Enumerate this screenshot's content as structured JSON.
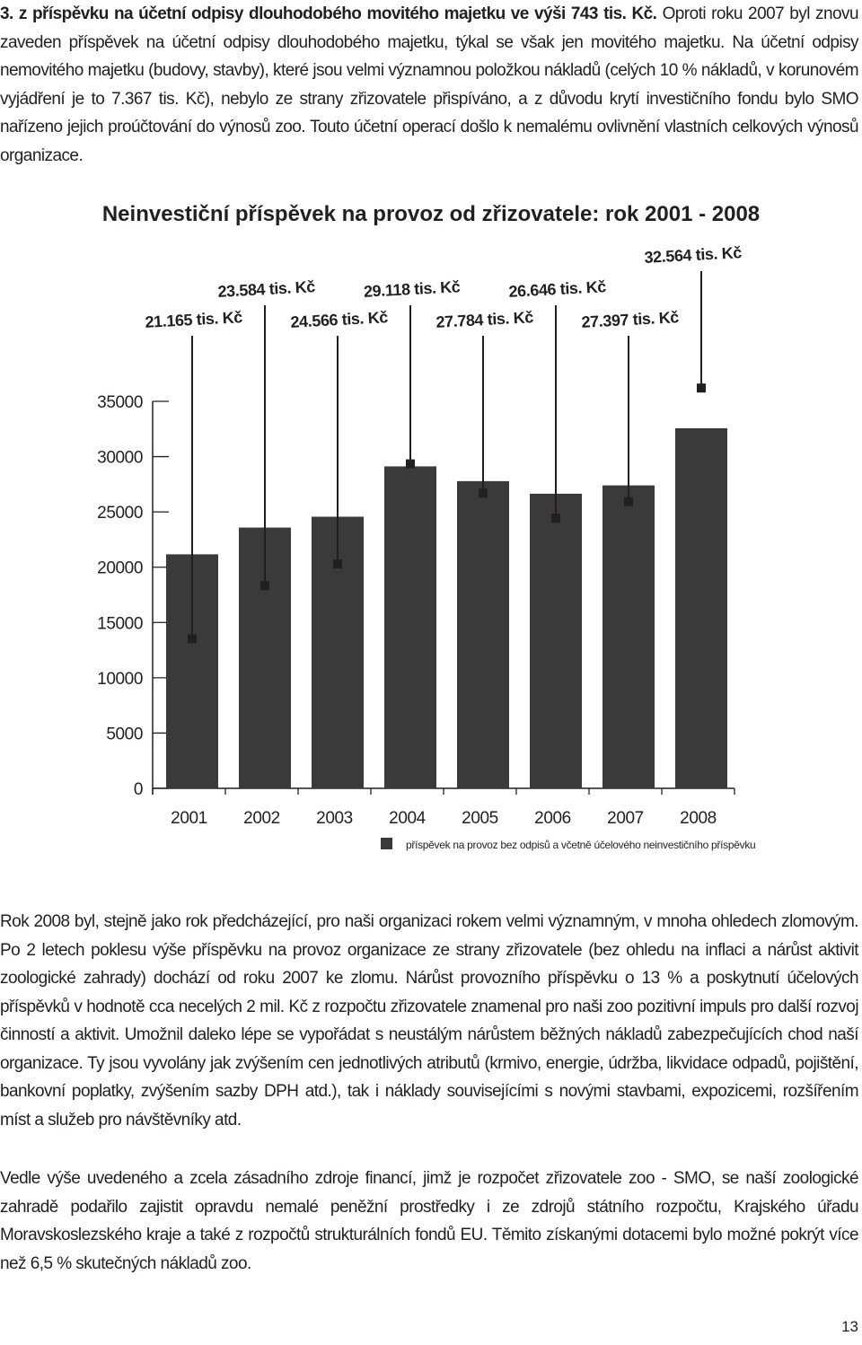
{
  "intro": {
    "lead": "3. z příspěvku na účetní odpisy dlouhodobého movitého majetku ve výši 743 tis. Kč.",
    "rest": "Oproti roku 2007 byl znovu zaveden příspěvek na účetní odpisy dlouhodobého majetku, týkal se však jen movitého majetku. Na účetní odpisy nemovitého majetku (budovy, stavby), které jsou velmi významnou položkou nákladů (celých 10 % nákladů, v korunovém vyjádření je to 7.367 tis. Kč), nebylo ze strany zřizovatele přispíváno, a z důvodu krytí investičního fondu bylo SMO nařízeno jejich proúčtování do výnosů zoo. Touto účetní operací došlo k nemalému ovlivnění vlastních celkových výnosů organizace."
  },
  "chart_data": {
    "type": "bar",
    "title": "Neinvestiční příspěvek na provoz od zřizovatele: rok 2001 - 2008",
    "categories": [
      "2001",
      "2002",
      "2003",
      "2004",
      "2005",
      "2006",
      "2007",
      "2008"
    ],
    "values": [
      21165,
      23584,
      24566,
      29118,
      27784,
      26646,
      27397,
      32564
    ],
    "data_labels": [
      "21.165 tis. Kč",
      "23.584 tis. Kč",
      "24.566 tis. Kč",
      "29.118 tis. Kč",
      "27.784 tis. Kč",
      "26.646 tis. Kč",
      "27.397 tis. Kč",
      "32.564 tis. Kč"
    ],
    "y_ticks": [
      "0",
      "5000",
      "10000",
      "15000",
      "20000",
      "25000",
      "30000",
      "35000"
    ],
    "ylim": [
      0,
      35000
    ],
    "legend": "příspěvek na provoz bez odpisů a včetně účelového neinvestičního příspěvku",
    "legend_position": "bottom-right",
    "grid": false,
    "colors": {
      "bar": "#3a3a3a",
      "text": "#231f20"
    }
  },
  "paragraph_2": "Rok 2008 byl, stejně jako rok předcházející, pro naši organizaci rokem velmi významným, v mnoha ohledech zlomovým. Po 2 letech poklesu výše příspěvku na provoz organizace ze strany zřizovatele (bez ohledu na inflaci a nárůst aktivit zoologické zahrady) dochází od roku 2007 ke zlomu. Nárůst provozního příspěvku o 13 % a poskytnutí účelových příspěvků v hodnotě cca necelých 2 mil. Kč z rozpočtu zřizovatele znamenal pro naši zoo pozitivní impuls pro další rozvoj činností a aktivit. Umožnil daleko lépe se vypořádat s neustálým nárůstem běžných nákladů zabezpečujících chod naší organizace. Ty jsou vyvolány jak zvýšením cen jednotlivých atributů (krmivo, energie, údržba, likvidace odpadů, pojištění, bankovní poplatky, zvýšením sazby DPH atd.), tak i náklady souvisejícími s novými stavbami, expozicemi, rozšířením míst a služeb pro návštěvníky atd.",
  "paragraph_3": "Vedle výše uvedeného a zcela zásadního zdroje financí, jimž je rozpočet zřizovatele zoo - SMO, se naší zoologické zahradě podařilo zajistit opravdu nemalé peněžní prostředky i ze zdrojů státního rozpočtu, Krajského úřadu Moravskoslezského kraje a také z rozpočtů strukturálních fondů EU. Těmito získanými dotacemi bylo možné pokrýt více než 6,5 % skutečných nákladů zoo.",
  "page_number": "13"
}
